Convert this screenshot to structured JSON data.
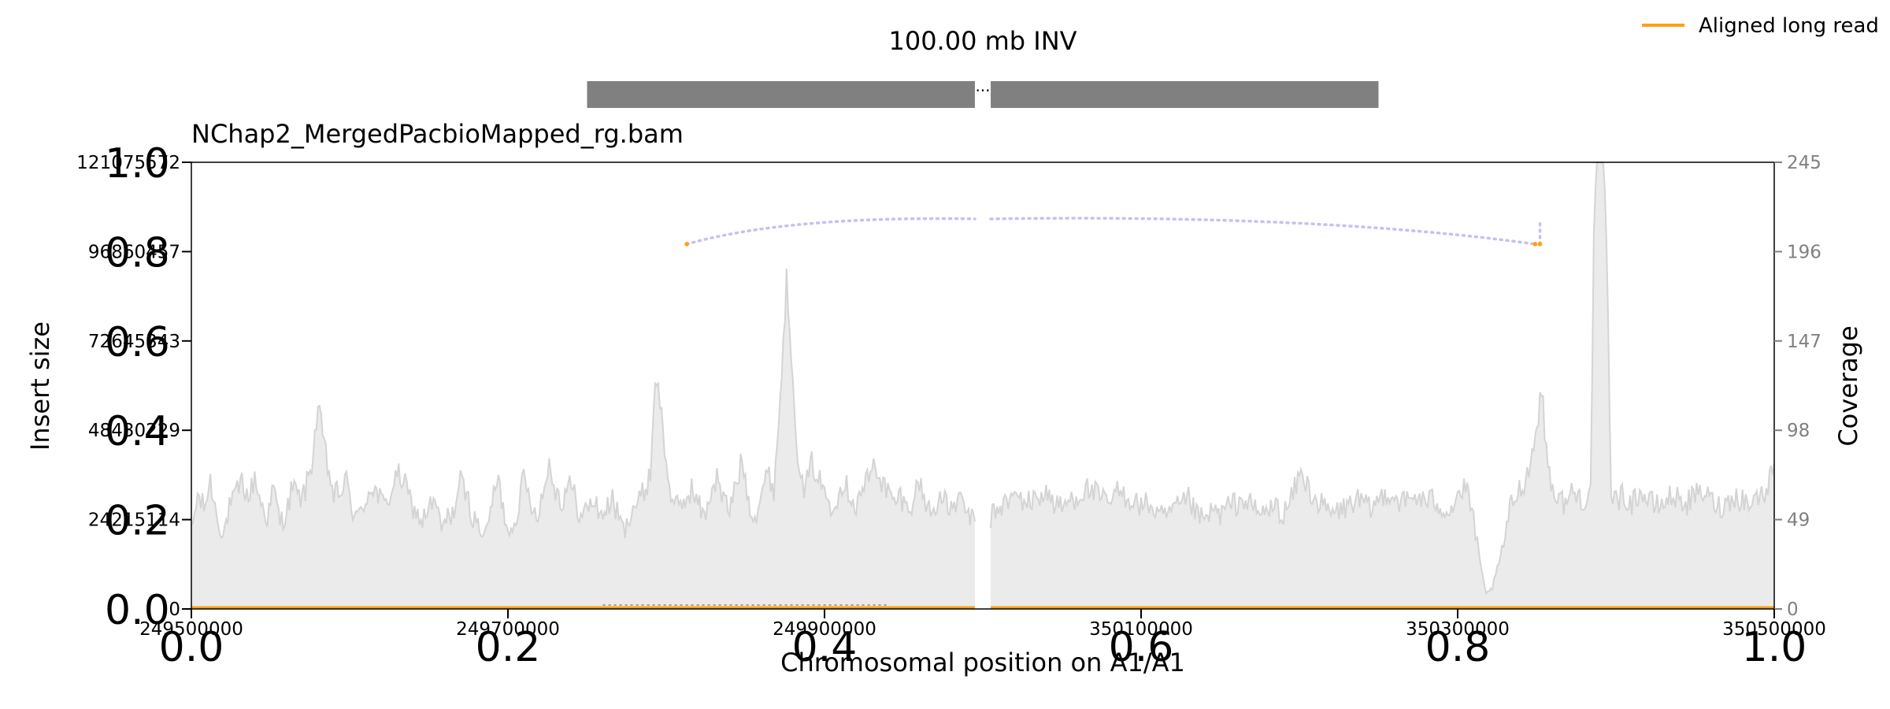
{
  "chart_data": {
    "type": "area",
    "title": "100.00 mb INV",
    "subtitle": "NChap2_MergedPacbioMapped_rg.bam",
    "xlabel": "Chromosomal position on A1/A1",
    "ylabel": "Insert size",
    "y2label": "Coverage",
    "legend": {
      "entries": [
        "Aligned long read"
      ],
      "placement": "top-right"
    },
    "x_tick_labels": [
      "249500000",
      "249700000",
      "249900000",
      "350100000",
      "350300000",
      "350500000"
    ],
    "x_frac_ticks": [
      "0.0",
      "0.2",
      "0.4",
      "0.6",
      "0.8",
      "1.0"
    ],
    "y_tick_labels": [
      "0",
      "24215114",
      "48430229",
      "72645343",
      "96860457",
      "121075572"
    ],
    "y_frac_ticks": [
      "0.0",
      "0.2",
      "0.4",
      "0.6",
      "0.8",
      "1.0"
    ],
    "y2_tick_labels": [
      "0",
      "49",
      "98",
      "147",
      "196",
      "245"
    ],
    "y2lim": [
      0,
      245
    ],
    "ylim": [
      0,
      121075572
    ],
    "xlim": [
      0,
      1
    ],
    "grid": false,
    "colors": {
      "coverage_fill": "#ebebeb",
      "coverage_line": "#d4d4d4",
      "aligned_read": "#ff9f1a",
      "split_link": "#c8bff0",
      "sv_bar": "#808080",
      "secondary_tick": "#808080"
    },
    "sv_segments": [
      {
        "x_start": 0.25,
        "x_end": 0.495
      },
      {
        "x_start": 0.505,
        "x_end": 0.75
      }
    ],
    "split_read_links": [
      {
        "x1": 0.313,
        "x2": 0.495,
        "insert_size": 98900000,
        "side": "left"
      },
      {
        "x1": 0.505,
        "x2": 0.849,
        "insert_size": 98900000,
        "side": "right"
      }
    ],
    "coverage_knots": [
      [
        0.0,
        42
      ],
      [
        0.004,
        62
      ],
      [
        0.008,
        55
      ],
      [
        0.012,
        70
      ],
      [
        0.016,
        52
      ],
      [
        0.02,
        40
      ],
      [
        0.024,
        55
      ],
      [
        0.028,
        62
      ],
      [
        0.032,
        70
      ],
      [
        0.036,
        60
      ],
      [
        0.04,
        72
      ],
      [
        0.044,
        58
      ],
      [
        0.048,
        50
      ],
      [
        0.052,
        66
      ],
      [
        0.056,
        48
      ],
      [
        0.06,
        52
      ],
      [
        0.064,
        68
      ],
      [
        0.068,
        60
      ],
      [
        0.072,
        65
      ],
      [
        0.076,
        80
      ],
      [
        0.08,
        110
      ],
      [
        0.083,
        95
      ],
      [
        0.086,
        78
      ],
      [
        0.09,
        62
      ],
      [
        0.094,
        64
      ],
      [
        0.098,
        70
      ],
      [
        0.102,
        54
      ],
      [
        0.106,
        50
      ],
      [
        0.11,
        60
      ],
      [
        0.114,
        68
      ],
      [
        0.118,
        62
      ],
      [
        0.122,
        56
      ],
      [
        0.126,
        64
      ],
      [
        0.13,
        74
      ],
      [
        0.134,
        70
      ],
      [
        0.138,
        60
      ],
      [
        0.142,
        52
      ],
      [
        0.146,
        48
      ],
      [
        0.15,
        56
      ],
      [
        0.154,
        58
      ],
      [
        0.158,
        44
      ],
      [
        0.162,
        50
      ],
      [
        0.166,
        54
      ],
      [
        0.17,
        70
      ],
      [
        0.174,
        62
      ],
      [
        0.178,
        50
      ],
      [
        0.182,
        45
      ],
      [
        0.186,
        40
      ],
      [
        0.19,
        60
      ],
      [
        0.194,
        70
      ],
      [
        0.198,
        50
      ],
      [
        0.202,
        42
      ],
      [
        0.206,
        55
      ],
      [
        0.21,
        72
      ],
      [
        0.214,
        60
      ],
      [
        0.218,
        52
      ],
      [
        0.222,
        62
      ],
      [
        0.226,
        80
      ],
      [
        0.23,
        66
      ],
      [
        0.234,
        58
      ],
      [
        0.238,
        70
      ],
      [
        0.242,
        62
      ],
      [
        0.246,
        50
      ],
      [
        0.25,
        55
      ],
      [
        0.254,
        60
      ],
      [
        0.258,
        52
      ],
      [
        0.262,
        54
      ],
      [
        0.266,
        60
      ],
      [
        0.27,
        50
      ],
      [
        0.274,
        42
      ],
      [
        0.278,
        56
      ],
      [
        0.282,
        58
      ],
      [
        0.286,
        64
      ],
      [
        0.29,
        74
      ],
      [
        0.293,
        128
      ],
      [
        0.296,
        115
      ],
      [
        0.3,
        78
      ],
      [
        0.304,
        60
      ],
      [
        0.308,
        54
      ],
      [
        0.312,
        60
      ],
      [
        0.316,
        66
      ],
      [
        0.32,
        58
      ],
      [
        0.324,
        50
      ],
      [
        0.328,
        64
      ],
      [
        0.332,
        72
      ],
      [
        0.336,
        60
      ],
      [
        0.34,
        54
      ],
      [
        0.344,
        68
      ],
      [
        0.348,
        82
      ],
      [
        0.352,
        60
      ],
      [
        0.356,
        50
      ],
      [
        0.36,
        64
      ],
      [
        0.364,
        74
      ],
      [
        0.368,
        66
      ],
      [
        0.372,
        115
      ],
      [
        0.376,
        180
      ],
      [
        0.38,
        130
      ],
      [
        0.384,
        70
      ],
      [
        0.388,
        66
      ],
      [
        0.392,
        80
      ],
      [
        0.396,
        72
      ],
      [
        0.4,
        64
      ],
      [
        0.404,
        58
      ],
      [
        0.408,
        62
      ],
      [
        0.412,
        70
      ],
      [
        0.416,
        64
      ],
      [
        0.42,
        56
      ],
      [
        0.424,
        66
      ],
      [
        0.428,
        72
      ],
      [
        0.432,
        80
      ],
      [
        0.436,
        70
      ],
      [
        0.44,
        64
      ],
      [
        0.444,
        58
      ],
      [
        0.448,
        62
      ],
      [
        0.452,
        55
      ],
      [
        0.456,
        60
      ],
      [
        0.46,
        70
      ],
      [
        0.464,
        58
      ],
      [
        0.468,
        52
      ],
      [
        0.472,
        62
      ],
      [
        0.476,
        58
      ],
      [
        0.48,
        54
      ],
      [
        0.484,
        60
      ],
      [
        0.488,
        56
      ],
      [
        0.492,
        50
      ],
      [
        0.495,
        48
      ],
      [
        0.505,
        50
      ],
      [
        0.51,
        56
      ],
      [
        0.515,
        58
      ],
      [
        0.52,
        62
      ],
      [
        0.525,
        60
      ],
      [
        0.53,
        58
      ],
      [
        0.535,
        62
      ],
      [
        0.54,
        64
      ],
      [
        0.545,
        58
      ],
      [
        0.55,
        55
      ],
      [
        0.555,
        60
      ],
      [
        0.56,
        62
      ],
      [
        0.565,
        66
      ],
      [
        0.57,
        64
      ],
      [
        0.575,
        60
      ],
      [
        0.58,
        58
      ],
      [
        0.585,
        64
      ],
      [
        0.59,
        62
      ],
      [
        0.595,
        60
      ],
      [
        0.6,
        56
      ],
      [
        0.605,
        58
      ],
      [
        0.61,
        52
      ],
      [
        0.615,
        50
      ],
      [
        0.62,
        54
      ],
      [
        0.625,
        56
      ],
      [
        0.63,
        60
      ],
      [
        0.635,
        52
      ],
      [
        0.64,
        48
      ],
      [
        0.645,
        54
      ],
      [
        0.65,
        52
      ],
      [
        0.655,
        56
      ],
      [
        0.66,
        58
      ],
      [
        0.665,
        60
      ],
      [
        0.67,
        56
      ],
      [
        0.675,
        52
      ],
      [
        0.68,
        54
      ],
      [
        0.685,
        56
      ],
      [
        0.69,
        52
      ],
      [
        0.695,
        60
      ],
      [
        0.7,
        74
      ],
      [
        0.705,
        68
      ],
      [
        0.71,
        60
      ],
      [
        0.715,
        56
      ],
      [
        0.72,
        52
      ],
      [
        0.725,
        54
      ],
      [
        0.73,
        56
      ],
      [
        0.735,
        60
      ],
      [
        0.74,
        58
      ],
      [
        0.745,
        54
      ],
      [
        0.75,
        60
      ],
      [
        0.755,
        64
      ],
      [
        0.76,
        62
      ],
      [
        0.765,
        58
      ],
      [
        0.77,
        60
      ],
      [
        0.775,
        62
      ],
      [
        0.78,
        58
      ],
      [
        0.785,
        60
      ],
      [
        0.79,
        56
      ],
      [
        0.795,
        54
      ],
      [
        0.8,
        62
      ],
      [
        0.805,
        66
      ],
      [
        0.81,
        50
      ],
      [
        0.815,
        20
      ],
      [
        0.818,
        8
      ],
      [
        0.822,
        12
      ],
      [
        0.826,
        24
      ],
      [
        0.83,
        40
      ],
      [
        0.834,
        58
      ],
      [
        0.838,
        64
      ],
      [
        0.842,
        70
      ],
      [
        0.846,
        80
      ],
      [
        0.85,
        100
      ],
      [
        0.853,
        122
      ],
      [
        0.856,
        86
      ],
      [
        0.86,
        66
      ],
      [
        0.864,
        60
      ],
      [
        0.868,
        58
      ],
      [
        0.872,
        64
      ],
      [
        0.876,
        62
      ],
      [
        0.88,
        60
      ],
      [
        0.884,
        64
      ],
      [
        0.886,
        200
      ],
      [
        0.888,
        248
      ],
      [
        0.89,
        245
      ],
      [
        0.892,
        248
      ],
      [
        0.894,
        200
      ],
      [
        0.897,
        66
      ],
      [
        0.9,
        60
      ],
      [
        0.905,
        62
      ],
      [
        0.91,
        58
      ],
      [
        0.915,
        64
      ],
      [
        0.92,
        60
      ],
      [
        0.925,
        56
      ],
      [
        0.93,
        58
      ],
      [
        0.935,
        62
      ],
      [
        0.94,
        60
      ],
      [
        0.945,
        58
      ],
      [
        0.95,
        62
      ],
      [
        0.955,
        64
      ],
      [
        0.96,
        60
      ],
      [
        0.965,
        56
      ],
      [
        0.97,
        58
      ],
      [
        0.975,
        62
      ],
      [
        0.98,
        60
      ],
      [
        0.985,
        58
      ],
      [
        0.99,
        62
      ],
      [
        0.995,
        64
      ],
      [
        1.0,
        80
      ]
    ]
  }
}
